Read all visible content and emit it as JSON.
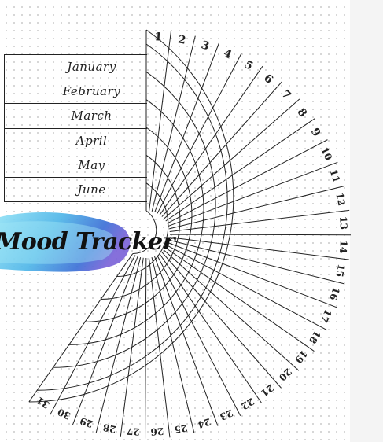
{
  "tracker": {
    "title": "Mood Tracker",
    "months": [
      "January",
      "February",
      "March",
      "April",
      "May",
      "June"
    ],
    "days": [
      "1",
      "2",
      "3",
      "4",
      "5",
      "6",
      "7",
      "8",
      "9",
      "10",
      "11",
      "12",
      "13",
      "14",
      "15",
      "16",
      "17",
      "18",
      "19",
      "20",
      "21",
      "22",
      "23",
      "24",
      "25",
      "26",
      "27",
      "28",
      "29",
      "30",
      "31"
    ]
  },
  "colors": {
    "ink": "#222222",
    "brush_light": "#8fe0f5",
    "brush_mid": "#4fb6e8",
    "brush_dark": "#3c6fd6",
    "brush_violet": "#7b63d8"
  }
}
